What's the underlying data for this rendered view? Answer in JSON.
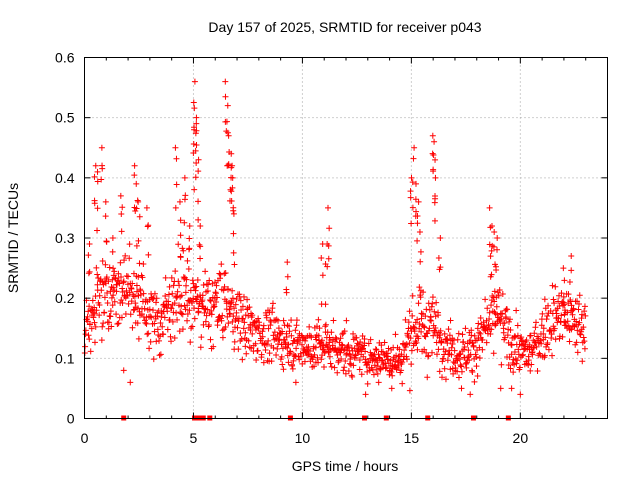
{
  "chart_data": {
    "type": "scatter",
    "title": "Day 157 of 2025, SRMTID for receiver p043",
    "xlabel": "GPS time / hours",
    "ylabel": "SRMTID / TECUs",
    "xlim": [
      0,
      24
    ],
    "ylim": [
      0,
      0.6
    ],
    "x_ticks": [
      0,
      5,
      10,
      15,
      20
    ],
    "y_ticks": [
      0,
      0.1,
      0.2,
      0.3,
      0.4,
      0.5,
      0.6
    ],
    "x_tick_labels": [
      "0",
      "5",
      "10",
      "15",
      "20"
    ],
    "y_tick_labels": [
      "0",
      "0.1",
      "0.2",
      "0.3",
      "0.4",
      "0.5",
      "0.6"
    ],
    "grid": true,
    "marker": "plus",
    "color": "#ff0000",
    "profile": {
      "hours": [
        0,
        0.5,
        1,
        1.5,
        2,
        2.5,
        3,
        3.5,
        4,
        4.5,
        5,
        5.5,
        6,
        6.5,
        7,
        7.5,
        8,
        8.5,
        9,
        9.5,
        10,
        10.5,
        11,
        11.5,
        12,
        12.5,
        13,
        13.5,
        14,
        14.5,
        15,
        15.5,
        16,
        16.5,
        17,
        17.5,
        18,
        18.5,
        19,
        19.5,
        20,
        20.5,
        21,
        21.5,
        22,
        22.5,
        23
      ],
      "median": [
        0.16,
        0.19,
        0.22,
        0.21,
        0.22,
        0.2,
        0.17,
        0.16,
        0.2,
        0.21,
        0.2,
        0.18,
        0.19,
        0.19,
        0.17,
        0.15,
        0.14,
        0.14,
        0.13,
        0.13,
        0.12,
        0.12,
        0.12,
        0.12,
        0.11,
        0.11,
        0.1,
        0.1,
        0.1,
        0.1,
        0.14,
        0.16,
        0.15,
        0.13,
        0.11,
        0.11,
        0.12,
        0.15,
        0.17,
        0.13,
        0.11,
        0.11,
        0.14,
        0.17,
        0.17,
        0.16,
        0.15
      ],
      "spread": [
        0.05,
        0.06,
        0.07,
        0.06,
        0.06,
        0.06,
        0.05,
        0.05,
        0.06,
        0.06,
        0.06,
        0.06,
        0.06,
        0.06,
        0.05,
        0.05,
        0.04,
        0.04,
        0.04,
        0.04,
        0.04,
        0.04,
        0.04,
        0.04,
        0.035,
        0.035,
        0.03,
        0.03,
        0.035,
        0.04,
        0.06,
        0.06,
        0.05,
        0.05,
        0.04,
        0.04,
        0.04,
        0.05,
        0.06,
        0.04,
        0.035,
        0.035,
        0.045,
        0.05,
        0.05,
        0.05,
        0.05
      ]
    },
    "spikes": [
      [
        0.2,
        0.29
      ],
      [
        0.5,
        0.42
      ],
      [
        0.6,
        0.41
      ],
      [
        0.8,
        0.45
      ],
      [
        1.0,
        0.36
      ],
      [
        1.3,
        0.3
      ],
      [
        1.7,
        0.37
      ],
      [
        2.3,
        0.42
      ],
      [
        2.4,
        0.39
      ],
      [
        2.5,
        0.36
      ],
      [
        2.9,
        0.35
      ],
      [
        4.2,
        0.45
      ],
      [
        4.4,
        0.36
      ],
      [
        4.6,
        0.4
      ],
      [
        4.8,
        0.32
      ],
      [
        5.0,
        0.48
      ],
      [
        5.05,
        0.56
      ],
      [
        5.1,
        0.49
      ],
      [
        5.15,
        0.5
      ],
      [
        5.2,
        0.43
      ],
      [
        5.3,
        0.32
      ],
      [
        6.5,
        0.56
      ],
      [
        6.55,
        0.52
      ],
      [
        6.6,
        0.47
      ],
      [
        6.7,
        0.44
      ],
      [
        6.75,
        0.42
      ],
      [
        6.8,
        0.4
      ],
      [
        6.85,
        0.34
      ],
      [
        9.3,
        0.26
      ],
      [
        10.9,
        0.29
      ],
      [
        11.1,
        0.29
      ],
      [
        11.2,
        0.35
      ],
      [
        15.0,
        0.4
      ],
      [
        15.1,
        0.45
      ],
      [
        15.2,
        0.39
      ],
      [
        15.3,
        0.36
      ],
      [
        15.4,
        0.31
      ],
      [
        16.0,
        0.47
      ],
      [
        16.05,
        0.46
      ],
      [
        16.1,
        0.4
      ],
      [
        16.3,
        0.3
      ],
      [
        18.6,
        0.35
      ],
      [
        18.7,
        0.32
      ],
      [
        18.8,
        0.31
      ],
      [
        18.9,
        0.3
      ],
      [
        22.0,
        0.25
      ],
      [
        22.3,
        0.27
      ]
    ],
    "lows": [
      [
        1.8,
        0.08
      ],
      [
        2.1,
        0.06
      ],
      [
        9.7,
        0.06
      ],
      [
        12.9,
        0.04
      ],
      [
        13.5,
        0.06
      ],
      [
        14.1,
        0.05
      ],
      [
        17.3,
        0.05
      ],
      [
        17.7,
        0.04
      ],
      [
        19.1,
        0.05
      ],
      [
        19.6,
        0.05
      ],
      [
        20.0,
        0.04
      ]
    ],
    "zero_flags": [
      1.8,
      5.05,
      5.25,
      5.45,
      5.75,
      9.45,
      12.85,
      13.85,
      15.75,
      17.85,
      19.45
    ]
  }
}
